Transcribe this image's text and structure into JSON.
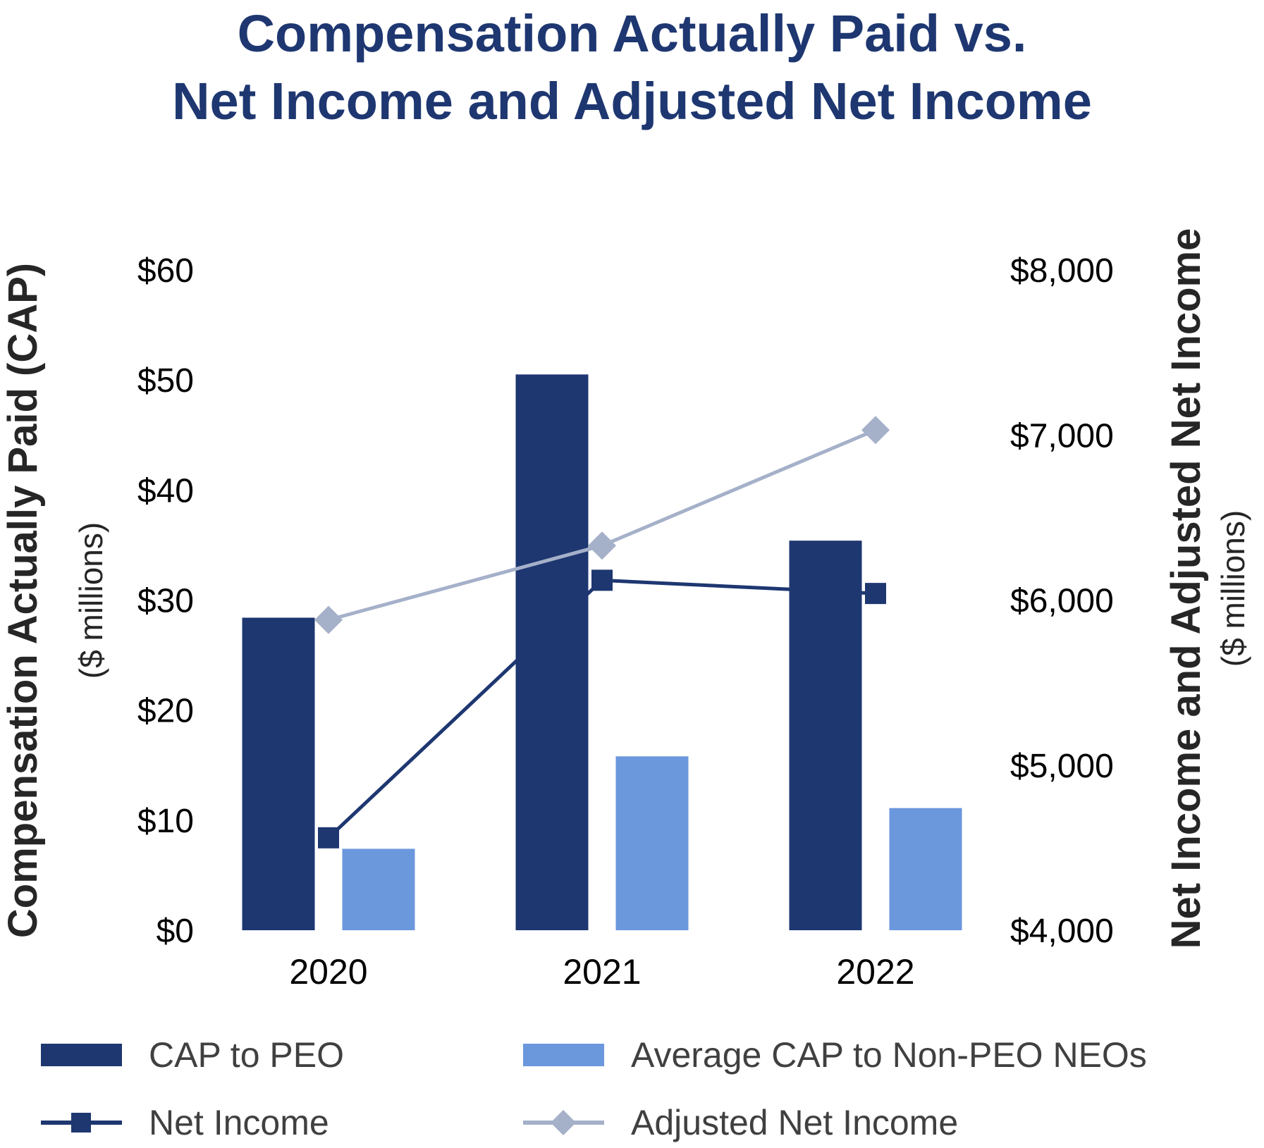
{
  "title_line1": "Compensation Actually Paid vs.",
  "title_line2": "Net Income and Adjusted Net Income",
  "colors": {
    "cap_peo": "#1e3771",
    "cap_non_peo": "#6b97dd",
    "net_income": "#1e3771",
    "adjusted_net_income": "#a5b0c9",
    "title": "#1e3771",
    "legend_text": "#404040"
  },
  "legend": {
    "cap_peo": "CAP to PEO",
    "cap_non_peo": "Average CAP to Non-PEO NEOs",
    "net_income": "Net Income",
    "adjusted_net_income": "Adjusted Net Income"
  },
  "chart_data": {
    "type": "bar",
    "title": "Compensation Actually Paid vs. Net Income and Adjusted Net Income",
    "categories": [
      "2020",
      "2021",
      "2022"
    ],
    "left_axis": {
      "label": "Compensation Actually Paid (CAP)",
      "sublabel": "($ millions)",
      "range": [
        0,
        60
      ],
      "ticks": [
        "$0",
        "$10",
        "$20",
        "$30",
        "$40",
        "$50",
        "$60"
      ]
    },
    "right_axis": {
      "label": "Net Income and Adjusted Net Income",
      "sublabel": "($ millions)",
      "range": [
        4000,
        8000
      ],
      "ticks": [
        "$4,000",
        "$5,000",
        "$6,000",
        "$7,000",
        "$8,000"
      ]
    },
    "series": [
      {
        "name": "CAP to PEO",
        "kind": "bar",
        "axis": "left",
        "values": [
          28.4,
          50.5,
          35.4
        ]
      },
      {
        "name": "Average CAP to Non-PEO NEOs",
        "kind": "bar",
        "axis": "left",
        "values": [
          7.4,
          15.8,
          11.1
        ]
      },
      {
        "name": "Net Income",
        "kind": "line",
        "marker": "square",
        "axis": "right",
        "values": [
          4560,
          6120,
          6040
        ]
      },
      {
        "name": "Adjusted Net Income",
        "kind": "line",
        "marker": "diamond",
        "axis": "right",
        "values": [
          5880,
          6330,
          7030
        ]
      }
    ],
    "grid": false,
    "legend_position": "bottom"
  }
}
